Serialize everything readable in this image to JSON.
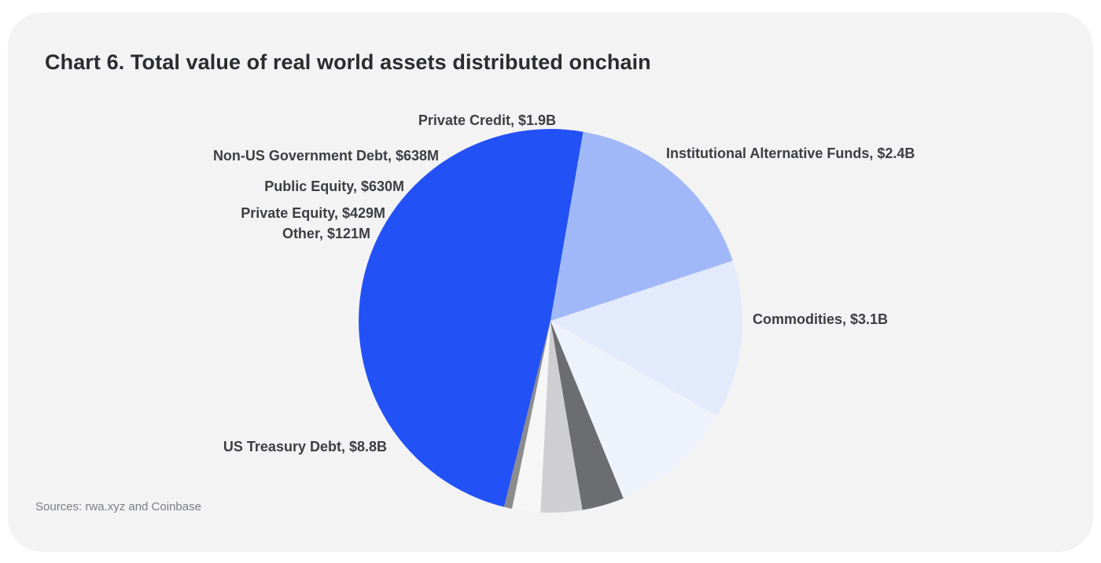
{
  "title": "Chart 6. Total value of real world assets distributed onchain",
  "source": "Sources: rwa.xyz and Coinbase",
  "chart_data": {
    "type": "pie",
    "title": "Chart 6. Total value of real world assets distributed onchain",
    "unit": "USD billions",
    "start_angle_deg": 194,
    "slices": [
      {
        "label": "US Treasury Debt, $8.8B",
        "name": "US Treasury Debt",
        "value": 8.8,
        "color": "#2251f5"
      },
      {
        "label": "Commodities, $3.1B",
        "name": "Commodities",
        "value": 3.1,
        "color": "#a0b8f8"
      },
      {
        "label": "Institutional Alternative Funds, $2.4B",
        "name": "Institutional Alternative Funds",
        "value": 2.4,
        "color": "#e3eafb"
      },
      {
        "label": "Private Credit, $1.9B",
        "name": "Private Credit",
        "value": 1.9,
        "color": "#eef2fb"
      },
      {
        "label": "Non-US Government Debt, $638M",
        "name": "Non-US Government Debt",
        "value": 0.638,
        "color": "#6b6d70"
      },
      {
        "label": "Public Equity, $630M",
        "name": "Public Equity",
        "value": 0.63,
        "color": "#cfcfd1"
      },
      {
        "label": "Private Equity, $429M",
        "name": "Private Equity",
        "value": 0.429,
        "color": "#f6f6f6"
      },
      {
        "label": "Other, $121M",
        "name": "Other",
        "value": 0.121,
        "color": "#8c8c8e"
      }
    ]
  }
}
